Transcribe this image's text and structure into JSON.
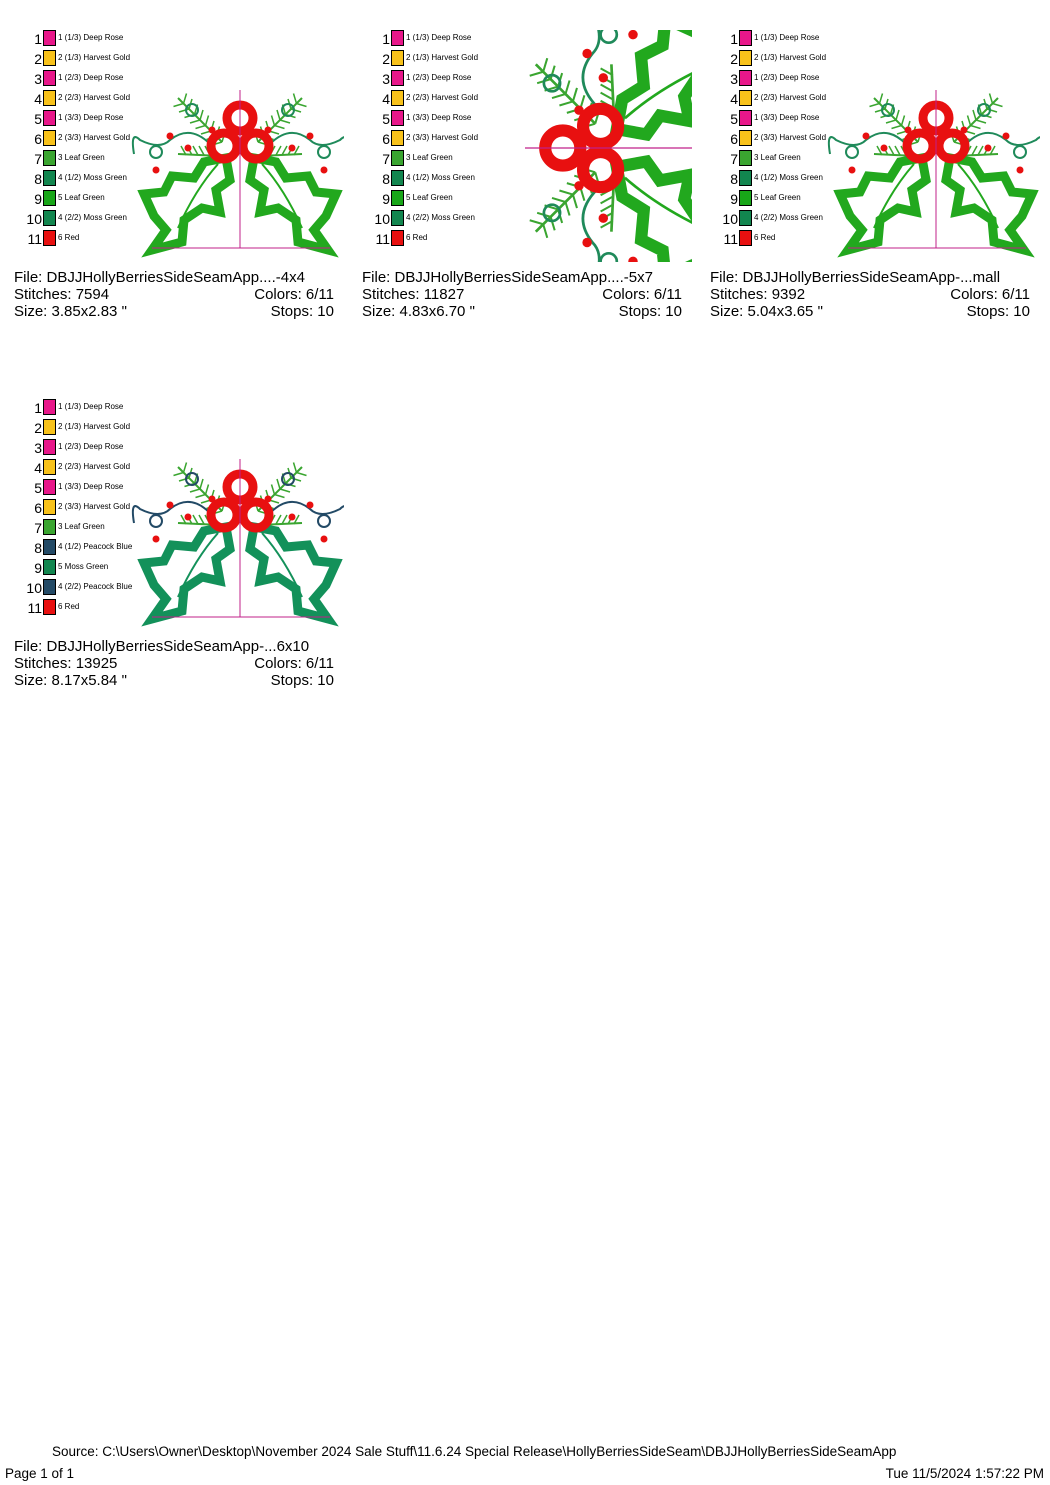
{
  "cards": [
    {
      "file": "File: DBJJHollyBerriesSideSeamApp....-4x4",
      "stitches": "Stitches: 7594",
      "colors": "Colors: 6/11",
      "size": "Size: 3.85x2.83 \"",
      "stops": "Stops: 10",
      "orientation": "up",
      "leaf_color": "#22a81e",
      "swirl_color": "#1f8a5a",
      "threads": [
        {
          "num": "1",
          "label": "1 (1/3) Deep Rose",
          "color": "#e8178a"
        },
        {
          "num": "2",
          "label": "2 (1/3) Harvest Gold",
          "color": "#f8c21a"
        },
        {
          "num": "3",
          "label": "1 (2/3) Deep Rose",
          "color": "#e8178a"
        },
        {
          "num": "4",
          "label": "2 (2/3) Harvest Gold",
          "color": "#f8c21a"
        },
        {
          "num": "5",
          "label": "1 (3/3) Deep Rose",
          "color": "#e8178a"
        },
        {
          "num": "6",
          "label": "2 (3/3) Harvest Gold",
          "color": "#f8c21a"
        },
        {
          "num": "7",
          "label": "3 Leaf Green",
          "color": "#3aa530"
        },
        {
          "num": "8",
          "label": "4 (1/2) Moss Green",
          "color": "#12864f"
        },
        {
          "num": "9",
          "label": "5 Leaf Green",
          "color": "#18a618"
        },
        {
          "num": "10",
          "label": "4 (2/2) Moss Green",
          "color": "#12864f"
        },
        {
          "num": "11",
          "label": "6 Red",
          "color": "#e81010"
        }
      ]
    },
    {
      "file": "File: DBJJHollyBerriesSideSeamApp....-5x7",
      "stitches": "Stitches: 11827",
      "colors": "Colors: 6/11",
      "size": "Size: 4.83x6.70 \"",
      "stops": "Stops: 10",
      "orientation": "left",
      "leaf_color": "#22a81e",
      "swirl_color": "#1f8a5a",
      "threads": [
        {
          "num": "1",
          "label": "1 (1/3) Deep Rose",
          "color": "#e8178a"
        },
        {
          "num": "2",
          "label": "2 (1/3) Harvest Gold",
          "color": "#f8c21a"
        },
        {
          "num": "3",
          "label": "1 (2/3) Deep Rose",
          "color": "#e8178a"
        },
        {
          "num": "4",
          "label": "2 (2/3) Harvest Gold",
          "color": "#f8c21a"
        },
        {
          "num": "5",
          "label": "1 (3/3) Deep Rose",
          "color": "#e8178a"
        },
        {
          "num": "6",
          "label": "2 (3/3) Harvest Gold",
          "color": "#f8c21a"
        },
        {
          "num": "7",
          "label": "3 Leaf Green",
          "color": "#3aa530"
        },
        {
          "num": "8",
          "label": "4 (1/2) Moss Green",
          "color": "#12864f"
        },
        {
          "num": "9",
          "label": "5 Leaf Green",
          "color": "#18a618"
        },
        {
          "num": "10",
          "label": "4 (2/2) Moss Green",
          "color": "#12864f"
        },
        {
          "num": "11",
          "label": "6 Red",
          "color": "#e81010"
        }
      ]
    },
    {
      "file": "File: DBJJHollyBerriesSideSeamApp-...mall",
      "stitches": "Stitches: 9392",
      "colors": "Colors: 6/11",
      "size": "Size: 5.04x3.65 \"",
      "stops": "Stops: 10",
      "orientation": "up",
      "leaf_color": "#22a81e",
      "swirl_color": "#1f8a5a",
      "threads": [
        {
          "num": "1",
          "label": "1 (1/3) Deep Rose",
          "color": "#e8178a"
        },
        {
          "num": "2",
          "label": "2 (1/3) Harvest Gold",
          "color": "#f8c21a"
        },
        {
          "num": "3",
          "label": "1 (2/3) Deep Rose",
          "color": "#e8178a"
        },
        {
          "num": "4",
          "label": "2 (2/3) Harvest Gold",
          "color": "#f8c21a"
        },
        {
          "num": "5",
          "label": "1 (3/3) Deep Rose",
          "color": "#e8178a"
        },
        {
          "num": "6",
          "label": "2 (3/3) Harvest Gold",
          "color": "#f8c21a"
        },
        {
          "num": "7",
          "label": "3 Leaf Green",
          "color": "#3aa530"
        },
        {
          "num": "8",
          "label": "4 (1/2) Moss Green",
          "color": "#12864f"
        },
        {
          "num": "9",
          "label": "5 Leaf Green",
          "color": "#18a618"
        },
        {
          "num": "10",
          "label": "4 (2/2) Moss Green",
          "color": "#12864f"
        },
        {
          "num": "11",
          "label": "6 Red",
          "color": "#e81010"
        }
      ]
    },
    {
      "file": "File: DBJJHollyBerriesSideSeamApp-...6x10",
      "stitches": "Stitches: 13925",
      "colors": "Colors: 6/11",
      "size": "Size: 8.17x5.84 \"",
      "stops": "Stops: 10",
      "orientation": "up",
      "leaf_color": "#13915a",
      "swirl_color": "#234a66",
      "threads": [
        {
          "num": "1",
          "label": "1 (1/3) Deep Rose",
          "color": "#e8178a"
        },
        {
          "num": "2",
          "label": "2 (1/3) Harvest Gold",
          "color": "#f8c21a"
        },
        {
          "num": "3",
          "label": "1 (2/3) Deep Rose",
          "color": "#e8178a"
        },
        {
          "num": "4",
          "label": "2 (2/3) Harvest Gold",
          "color": "#f8c21a"
        },
        {
          "num": "5",
          "label": "1 (3/3) Deep Rose",
          "color": "#e8178a"
        },
        {
          "num": "6",
          "label": "2 (3/3) Harvest Gold",
          "color": "#f8c21a"
        },
        {
          "num": "7",
          "label": "3 Leaf Green",
          "color": "#3aa530"
        },
        {
          "num": "8",
          "label": "4 (1/2) Peacock Blue",
          "color": "#234a66"
        },
        {
          "num": "9",
          "label": "5 Moss Green",
          "color": "#12864f"
        },
        {
          "num": "10",
          "label": "4 (2/2) Peacock Blue",
          "color": "#234a66"
        },
        {
          "num": "11",
          "label": "6 Red",
          "color": "#e81010"
        }
      ]
    }
  ],
  "footer": {
    "page": "Page 1 of 1",
    "source": "Source: C:\\Users\\Owner\\Desktop\\November 2024 Sale Stuff\\11.6.24 Special Release\\HollyBerriesSideSeam\\DBJJHollyBerriesSideSeamApp",
    "datetime": "Tue 11/5/2024 1:57:22 PM"
  },
  "berry_color": "#e81010",
  "axis_color": "#c0208a"
}
